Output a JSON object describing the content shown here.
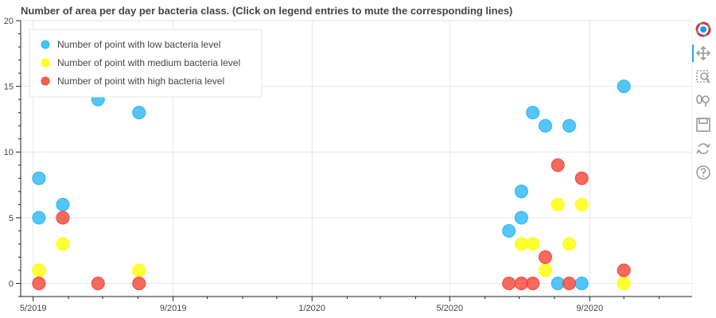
{
  "chart_data": {
    "type": "scatter",
    "title": "Number of area per day per bacteria class. (Click on legend entries to mute the corresponding lines)",
    "xlabel": "",
    "ylabel": "",
    "x_axis": {
      "type": "date",
      "range": [
        "2019-04-20",
        "2020-11-30"
      ],
      "tick_labels": [
        "5/2019",
        "9/2019",
        "1/2020",
        "5/2020",
        "9/2020"
      ],
      "tick_dates": [
        "2019-05-01",
        "2019-09-01",
        "2020-01-01",
        "2020-05-01",
        "2020-09-01"
      ]
    },
    "y_axis": {
      "range": [
        -1,
        20
      ],
      "ticks": [
        0,
        5,
        10,
        15,
        20
      ]
    },
    "grid": true,
    "legend_position": "top-left",
    "series": [
      {
        "name": "Number of point with low bacteria level",
        "color": "#29b6f6",
        "points": [
          {
            "x": "2019-05-06",
            "y": 8
          },
          {
            "x": "2019-05-06",
            "y": 5
          },
          {
            "x": "2019-05-27",
            "y": 6
          },
          {
            "x": "2019-06-27",
            "y": 14
          },
          {
            "x": "2019-08-02",
            "y": 13
          },
          {
            "x": "2020-06-22",
            "y": 4
          },
          {
            "x": "2020-07-03",
            "y": 7
          },
          {
            "x": "2020-07-03",
            "y": 5
          },
          {
            "x": "2020-07-13",
            "y": 13
          },
          {
            "x": "2020-07-24",
            "y": 12
          },
          {
            "x": "2020-08-04",
            "y": 0
          },
          {
            "x": "2020-08-14",
            "y": 12
          },
          {
            "x": "2020-08-25",
            "y": 0
          },
          {
            "x": "2020-10-01",
            "y": 15
          }
        ]
      },
      {
        "name": "Number of point with medium bacteria level",
        "color": "#ffff00",
        "points": [
          {
            "x": "2019-05-06",
            "y": 1
          },
          {
            "x": "2019-05-27",
            "y": 3
          },
          {
            "x": "2019-08-02",
            "y": 1
          },
          {
            "x": "2020-07-03",
            "y": 3
          },
          {
            "x": "2020-07-13",
            "y": 3
          },
          {
            "x": "2020-07-24",
            "y": 1
          },
          {
            "x": "2020-08-04",
            "y": 6
          },
          {
            "x": "2020-08-14",
            "y": 3
          },
          {
            "x": "2020-08-25",
            "y": 6
          },
          {
            "x": "2020-10-01",
            "y": 0
          }
        ]
      },
      {
        "name": "Number of point with high bacteria level",
        "color": "#f44336",
        "points": [
          {
            "x": "2019-05-06",
            "y": 0
          },
          {
            "x": "2019-05-27",
            "y": 5
          },
          {
            "x": "2019-06-27",
            "y": 0
          },
          {
            "x": "2019-08-02",
            "y": 0
          },
          {
            "x": "2020-06-22",
            "y": 0
          },
          {
            "x": "2020-07-03",
            "y": 0
          },
          {
            "x": "2020-07-13",
            "y": 0
          },
          {
            "x": "2020-07-24",
            "y": 2
          },
          {
            "x": "2020-08-04",
            "y": 9
          },
          {
            "x": "2020-08-14",
            "y": 0
          },
          {
            "x": "2020-08-25",
            "y": 8
          },
          {
            "x": "2020-10-01",
            "y": 1
          }
        ]
      }
    ]
  },
  "toolbar": {
    "tools": [
      {
        "name": "bokeh-logo-icon",
        "interactable": false
      },
      {
        "name": "pan-tool-icon",
        "interactable": true,
        "active": true
      },
      {
        "name": "box-zoom-tool-icon",
        "interactable": true
      },
      {
        "name": "wheel-zoom-tool-icon",
        "interactable": true
      },
      {
        "name": "save-tool-icon",
        "interactable": true
      },
      {
        "name": "reset-tool-icon",
        "interactable": true
      },
      {
        "name": "help-tool-icon",
        "interactable": true
      }
    ]
  }
}
